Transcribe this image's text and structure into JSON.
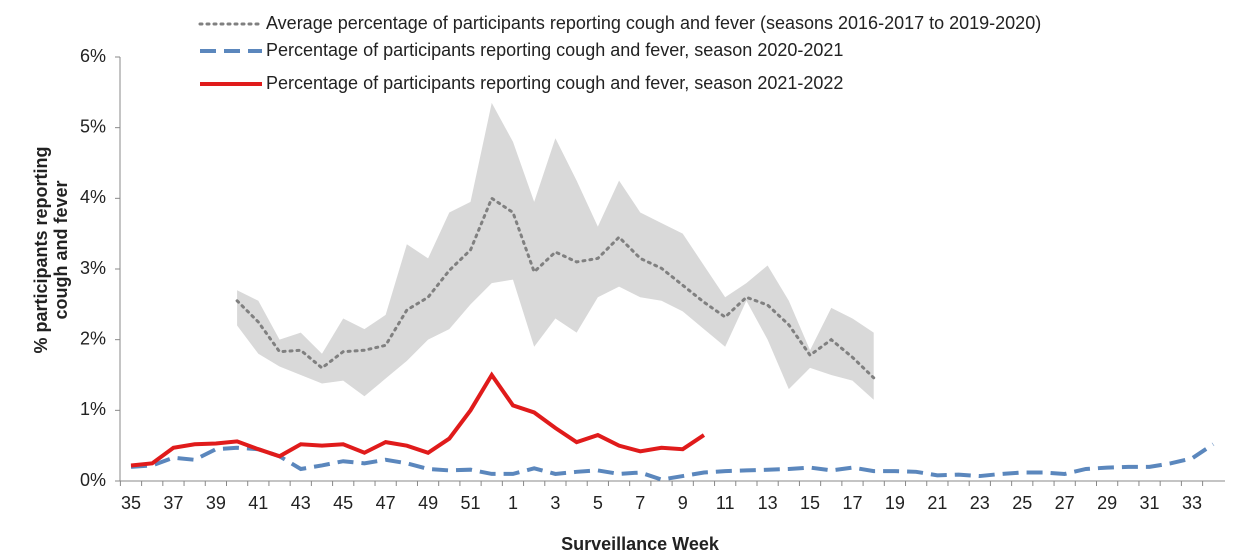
{
  "chart_data": {
    "type": "line",
    "ylabel": [
      "% participants reporting",
      "cough and fever"
    ],
    "xlabel": "Surveillance Week",
    "categories": [
      "35",
      null,
      "37",
      null,
      "39",
      null,
      "41",
      null,
      "43",
      null,
      "45",
      null,
      "47",
      null,
      "49",
      null,
      "51",
      null,
      "1",
      null,
      "3",
      null,
      "5",
      null,
      "7",
      null,
      "9",
      null,
      "11",
      null,
      "13",
      null,
      "15",
      null,
      "17",
      null,
      "19",
      null,
      "21",
      null,
      "23",
      null,
      "25",
      null,
      "27",
      null,
      "29",
      null,
      "31",
      null,
      "33",
      null
    ],
    "series": [
      {
        "name": "Average percentage of participants reporting cough and fever (seasons 2016-2017 to 2019-2020)",
        "color": "#808080",
        "style": "dotted",
        "values": [
          null,
          null,
          null,
          null,
          null,
          2.55,
          2.25,
          1.83,
          1.85,
          1.6,
          1.83,
          1.85,
          1.92,
          2.42,
          2.6,
          2.98,
          3.27,
          4.0,
          3.8,
          2.96,
          3.24,
          3.1,
          3.15,
          3.45,
          3.15,
          3.01,
          2.77,
          2.53,
          2.32,
          2.6,
          2.49,
          2.21,
          1.78,
          2.0,
          1.75,
          1.46,
          null,
          null,
          null,
          null,
          null,
          null,
          null,
          null,
          null,
          null,
          null,
          null,
          null,
          null,
          null,
          null
        ]
      },
      {
        "name": "Percentage of participants reporting cough and fever, season 2020-2021",
        "color": "#5b87bd",
        "style": "dashed",
        "values": [
          0.2,
          0.22,
          0.33,
          0.3,
          0.45,
          0.47,
          0.45,
          0.35,
          0.17,
          0.22,
          0.28,
          0.25,
          0.3,
          0.25,
          0.17,
          0.15,
          0.16,
          0.1,
          0.1,
          0.18,
          0.1,
          0.13,
          0.15,
          0.1,
          0.12,
          0.02,
          0.07,
          0.12,
          0.14,
          0.15,
          0.16,
          0.17,
          0.19,
          0.15,
          0.19,
          0.14,
          0.14,
          0.13,
          0.08,
          0.09,
          0.07,
          0.1,
          0.12,
          0.12,
          0.1,
          0.17,
          0.19,
          0.2,
          0.2,
          0.25,
          0.32,
          0.52
        ]
      },
      {
        "name": "Percentage of participants reporting cough and fever, season 2021-2022",
        "color": "#e01b1b",
        "style": "solid",
        "values": [
          0.22,
          0.25,
          0.47,
          0.52,
          0.53,
          0.56,
          0.45,
          0.35,
          0.52,
          0.5,
          0.52,
          0.4,
          0.55,
          0.5,
          0.4,
          0.6,
          1.0,
          1.5,
          1.07,
          0.97,
          0.75,
          0.55,
          0.65,
          0.5,
          0.42,
          0.47,
          0.45,
          0.65,
          null,
          null,
          null,
          null,
          null,
          null,
          null,
          null,
          null,
          null,
          null,
          null,
          null,
          null,
          null,
          null,
          null,
          null,
          null,
          null,
          null,
          null,
          null,
          null
        ]
      }
    ],
    "band": {
      "color": "#d9d9d9",
      "upper": [
        null,
        null,
        null,
        null,
        null,
        2.7,
        2.55,
        2.0,
        2.1,
        1.8,
        2.3,
        2.15,
        2.35,
        3.35,
        3.15,
        3.8,
        3.95,
        5.35,
        4.8,
        3.95,
        4.85,
        4.25,
        3.6,
        4.25,
        3.8,
        3.65,
        3.5,
        3.05,
        2.6,
        2.8,
        3.05,
        2.55,
        1.85,
        2.45,
        2.3,
        2.1,
        null,
        null,
        null,
        null,
        null,
        null,
        null,
        null,
        null,
        null,
        null,
        null,
        null,
        null,
        null,
        null
      ],
      "lower": [
        null,
        null,
        null,
        null,
        null,
        2.2,
        1.8,
        1.62,
        1.5,
        1.38,
        1.42,
        1.2,
        1.45,
        1.7,
        2.0,
        2.15,
        2.5,
        2.8,
        2.85,
        1.9,
        2.3,
        2.1,
        2.6,
        2.75,
        2.6,
        2.55,
        2.4,
        2.15,
        1.9,
        2.55,
        2.0,
        1.3,
        1.6,
        1.5,
        1.42,
        1.15,
        null,
        null,
        null,
        null,
        null,
        null,
        null,
        null,
        null,
        null,
        null,
        null,
        null,
        null,
        null,
        null
      ]
    },
    "ylim": [
      0,
      6
    ],
    "yticks": [
      {
        "value": 0,
        "label": "0%"
      },
      {
        "value": 1,
        "label": "1%"
      },
      {
        "value": 2,
        "label": "2%"
      },
      {
        "value": 3,
        "label": "3%"
      },
      {
        "value": 4,
        "label": "4%"
      },
      {
        "value": 5,
        "label": "5%"
      },
      {
        "value": 6,
        "label": "6%"
      }
    ],
    "grid": false
  }
}
